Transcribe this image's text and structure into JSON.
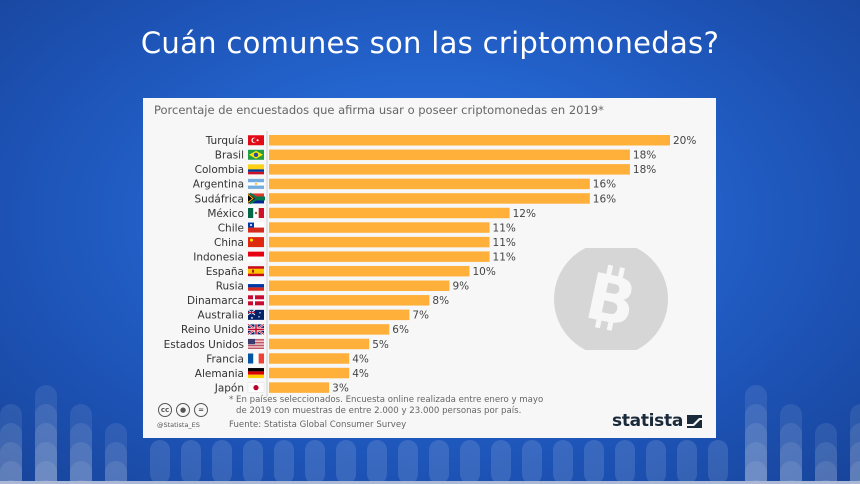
{
  "slide": {
    "title": "Cuán comunes son las criptomonedas?"
  },
  "card": {
    "subtitle": "Porcentaje de encuestados que afirma usar o poseer criptomonedas en 2019*",
    "footnote_line1": "* En países seleccionados. Encuesta online realizada entre enero y mayo",
    "footnote_line2": "de 2019 con muestras de entre 2.000 y 23.000 personas por país.",
    "source": "Fuente: Statista Global Consumer Survey",
    "handle": "@Statista_ES",
    "brand": "statista",
    "license_icons": [
      "cc",
      "by",
      "nd"
    ],
    "watermark_icon": "bitcoin-icon"
  },
  "colors": {
    "bar": "#ffb03b",
    "background_blue": "#2465cf",
    "card": "#f7f7f7"
  },
  "chart_data": {
    "type": "bar",
    "orientation": "horizontal",
    "title": "Porcentaje de encuestados que afirma usar o poseer criptomonedas en 2019*",
    "xlabel": "",
    "ylabel": "",
    "unit": "%",
    "xlim": [
      0,
      20
    ],
    "grid": false,
    "categories": [
      "Turquía",
      "Brasil",
      "Colombia",
      "Argentina",
      "Sudáfrica",
      "México",
      "Chile",
      "China",
      "Indonesia",
      "España",
      "Rusia",
      "Dinamarca",
      "Australia",
      "Reino Unido",
      "Estados Unidos",
      "Francia",
      "Alemania",
      "Japón"
    ],
    "flags": [
      "flag-turkey",
      "flag-brazil",
      "flag-colombia",
      "flag-argentina",
      "flag-south-africa",
      "flag-mexico",
      "flag-chile",
      "flag-china",
      "flag-indonesia",
      "flag-spain",
      "flag-russia",
      "flag-denmark",
      "flag-australia",
      "flag-uk",
      "flag-usa",
      "flag-france",
      "flag-germany",
      "flag-japan"
    ],
    "values": [
      20,
      18,
      18,
      16,
      16,
      12,
      11,
      11,
      11,
      10,
      9,
      8,
      7,
      6,
      5,
      4,
      4,
      3
    ],
    "value_labels": [
      "20%",
      "18%",
      "18%",
      "16%",
      "16%",
      "12%",
      "11%",
      "11%",
      "11%",
      "10%",
      "9%",
      "8%",
      "7%",
      "6%",
      "5%",
      "4%",
      "4%",
      "3%"
    ]
  }
}
